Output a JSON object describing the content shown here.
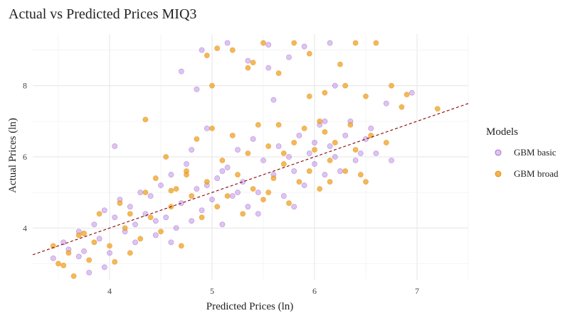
{
  "chart_data": {
    "type": "scatter",
    "title": "Actual vs Predicted Prices MIQ3",
    "xlabel": "Predicted Prices (ln)",
    "ylabel": "Actual Prices (ln)",
    "xlim": [
      3.25,
      7.5
    ],
    "ylim": [
      2.55,
      9.45
    ],
    "x_ticks": [
      4,
      5,
      6,
      7
    ],
    "y_ticks": [
      4,
      6,
      8
    ],
    "grid": true,
    "legend": {
      "title": "Models",
      "placement": "right"
    },
    "reference_line": {
      "style": "dashed",
      "color": "#8B0000",
      "intercept": 0.0,
      "slope": 1.0
    },
    "series": [
      {
        "name": "GBM basic",
        "color": "#9B59D0",
        "points": [
          [
            3.45,
            3.15
          ],
          [
            3.55,
            3.6
          ],
          [
            3.6,
            3.4
          ],
          [
            3.7,
            3.9
          ],
          [
            3.75,
            3.35
          ],
          [
            3.8,
            2.75
          ],
          [
            3.85,
            4.1
          ],
          [
            3.9,
            3.7
          ],
          [
            3.95,
            4.5
          ],
          [
            4.0,
            3.3
          ],
          [
            4.05,
            4.3
          ],
          [
            4.05,
            6.3
          ],
          [
            4.1,
            4.8
          ],
          [
            4.15,
            3.9
          ],
          [
            4.2,
            4.6
          ],
          [
            4.25,
            4.1
          ],
          [
            4.3,
            5.0
          ],
          [
            4.35,
            4.4
          ],
          [
            4.4,
            4.9
          ],
          [
            4.45,
            3.8
          ],
          [
            4.5,
            5.2
          ],
          [
            4.55,
            4.3
          ],
          [
            4.6,
            5.5
          ],
          [
            4.65,
            4.0
          ],
          [
            4.7,
            4.7
          ],
          [
            4.75,
            5.8
          ],
          [
            4.8,
            4.2
          ],
          [
            4.85,
            5.1
          ],
          [
            4.9,
            4.5
          ],
          [
            4.95,
            6.8
          ],
          [
            5.0,
            4.8
          ],
          [
            5.05,
            5.4
          ],
          [
            5.1,
            4.1
          ],
          [
            5.15,
            5.7
          ],
          [
            5.2,
            4.9
          ],
          [
            5.25,
            6.2
          ],
          [
            5.3,
            5.3
          ],
          [
            5.35,
            4.6
          ],
          [
            5.4,
            6.5
          ],
          [
            5.45,
            5.0
          ],
          [
            5.5,
            5.9
          ],
          [
            5.55,
            8.5
          ],
          [
            5.6,
            5.5
          ],
          [
            5.65,
            6.3
          ],
          [
            5.7,
            4.9
          ],
          [
            5.75,
            6.0
          ],
          [
            5.8,
            5.6
          ],
          [
            5.85,
            6.6
          ],
          [
            5.9,
            5.2
          ],
          [
            5.95,
            6.1
          ],
          [
            6.0,
            5.8
          ],
          [
            6.05,
            6.9
          ],
          [
            6.1,
            5.5
          ],
          [
            6.15,
            6.3
          ],
          [
            6.2,
            6.0
          ],
          [
            6.3,
            6.6
          ],
          [
            6.4,
            5.9
          ],
          [
            6.5,
            6.5
          ],
          [
            6.6,
            6.1
          ],
          [
            6.75,
            5.9
          ],
          [
            4.9,
            9.0
          ],
          [
            4.7,
            8.4
          ],
          [
            4.85,
            7.9
          ],
          [
            5.15,
            9.2
          ],
          [
            5.55,
            9.15
          ],
          [
            5.9,
            9.1
          ],
          [
            6.15,
            9.2
          ],
          [
            6.2,
            8.0
          ],
          [
            5.75,
            8.8
          ],
          [
            5.35,
            8.7
          ],
          [
            6.35,
            7.0
          ],
          [
            6.55,
            6.8
          ],
          [
            6.95,
            7.8
          ],
          [
            6.7,
            7.5
          ],
          [
            6.0,
            6.4
          ],
          [
            5.1,
            5.6
          ],
          [
            4.95,
            5.2
          ],
          [
            5.25,
            5.0
          ],
          [
            4.45,
            4.2
          ],
          [
            4.25,
            3.6
          ],
          [
            3.7,
            3.2
          ],
          [
            5.6,
            7.6
          ],
          [
            4.6,
            3.6
          ],
          [
            6.1,
            7.0
          ],
          [
            5.8,
            4.6
          ],
          [
            6.25,
            5.6
          ],
          [
            6.45,
            6.1
          ],
          [
            3.95,
            2.9
          ],
          [
            5.45,
            4.4
          ],
          [
            4.8,
            6.2
          ]
        ]
      },
      {
        "name": "GBM broad",
        "color": "#F0A020",
        "points": [
          [
            3.45,
            3.5
          ],
          [
            3.5,
            3.0
          ],
          [
            3.6,
            3.3
          ],
          [
            3.65,
            2.65
          ],
          [
            3.7,
            3.8
          ],
          [
            3.8,
            3.1
          ],
          [
            3.85,
            3.6
          ],
          [
            3.9,
            4.4
          ],
          [
            4.0,
            3.5
          ],
          [
            4.05,
            3.05
          ],
          [
            4.1,
            4.7
          ],
          [
            4.15,
            4.0
          ],
          [
            4.2,
            4.4
          ],
          [
            4.3,
            3.7
          ],
          [
            4.35,
            5.0
          ],
          [
            4.4,
            4.3
          ],
          [
            4.45,
            5.4
          ],
          [
            4.5,
            3.9
          ],
          [
            4.55,
            6.0
          ],
          [
            4.6,
            4.6
          ],
          [
            4.65,
            5.1
          ],
          [
            4.7,
            3.5
          ],
          [
            4.75,
            5.6
          ],
          [
            4.8,
            4.9
          ],
          [
            4.85,
            6.5
          ],
          [
            4.9,
            4.3
          ],
          [
            4.95,
            5.3
          ],
          [
            5.0,
            6.8
          ],
          [
            5.05,
            4.6
          ],
          [
            5.1,
            5.9
          ],
          [
            5.15,
            4.9
          ],
          [
            5.2,
            6.6
          ],
          [
            5.25,
            5.5
          ],
          [
            5.3,
            4.4
          ],
          [
            5.35,
            6.1
          ],
          [
            5.4,
            5.1
          ],
          [
            5.45,
            6.9
          ],
          [
            5.5,
            4.8
          ],
          [
            5.55,
            6.3
          ],
          [
            5.6,
            5.4
          ],
          [
            5.65,
            6.9
          ],
          [
            5.7,
            5.8
          ],
          [
            5.75,
            4.7
          ],
          [
            5.8,
            6.4
          ],
          [
            5.85,
            5.3
          ],
          [
            5.9,
            6.8
          ],
          [
            5.95,
            5.6
          ],
          [
            6.0,
            6.2
          ],
          [
            6.05,
            5.1
          ],
          [
            6.1,
            6.7
          ],
          [
            6.15,
            5.9
          ],
          [
            6.2,
            6.4
          ],
          [
            6.3,
            5.6
          ],
          [
            6.35,
            6.9
          ],
          [
            6.4,
            6.2
          ],
          [
            6.5,
            5.3
          ],
          [
            6.55,
            6.6
          ],
          [
            6.7,
            6.4
          ],
          [
            6.85,
            7.4
          ],
          [
            7.2,
            7.35
          ],
          [
            4.35,
            7.05
          ],
          [
            4.95,
            8.85
          ],
          [
            5.05,
            9.05
          ],
          [
            5.2,
            9.0
          ],
          [
            5.35,
            8.5
          ],
          [
            5.5,
            9.2
          ],
          [
            5.65,
            8.35
          ],
          [
            5.8,
            9.2
          ],
          [
            5.95,
            8.9
          ],
          [
            6.1,
            7.8
          ],
          [
            6.25,
            8.6
          ],
          [
            6.4,
            9.2
          ],
          [
            6.6,
            9.2
          ],
          [
            6.75,
            8.0
          ],
          [
            6.5,
            7.7
          ],
          [
            5.4,
            8.65
          ],
          [
            5.0,
            8.0
          ],
          [
            4.75,
            5.5
          ],
          [
            3.75,
            3.85
          ],
          [
            4.2,
            3.3
          ],
          [
            5.55,
            5.0
          ],
          [
            6.15,
            5.3
          ],
          [
            6.45,
            5.5
          ],
          [
            6.05,
            7.0
          ],
          [
            4.6,
            5.05
          ],
          [
            5.7,
            6.1
          ],
          [
            3.55,
            2.95
          ],
          [
            5.95,
            7.7
          ],
          [
            6.3,
            8.0
          ],
          [
            6.9,
            7.75
          ]
        ]
      }
    ]
  }
}
